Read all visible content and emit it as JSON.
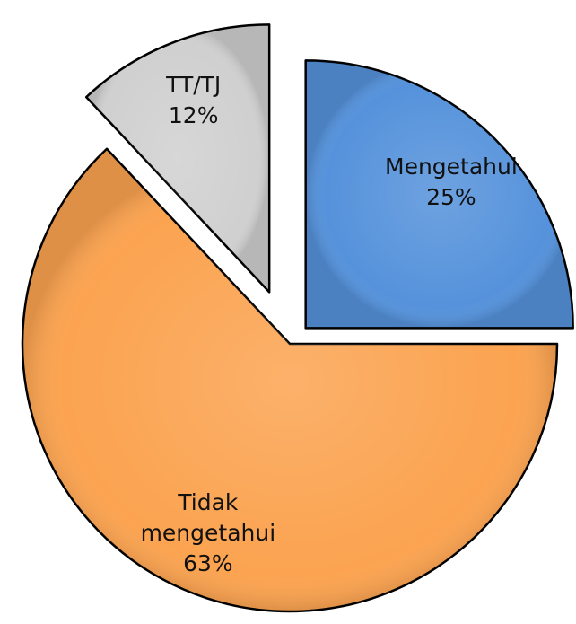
{
  "chart_data": {
    "type": "pie",
    "categories": [
      "Mengetahui",
      "Tidak mengetahui",
      "TT/TJ"
    ],
    "values": [
      25,
      63,
      12
    ],
    "value_labels": [
      "25%",
      "63%",
      "12%"
    ],
    "colors": [
      "#5592db",
      "#fba350",
      "#d0d0d0"
    ]
  }
}
